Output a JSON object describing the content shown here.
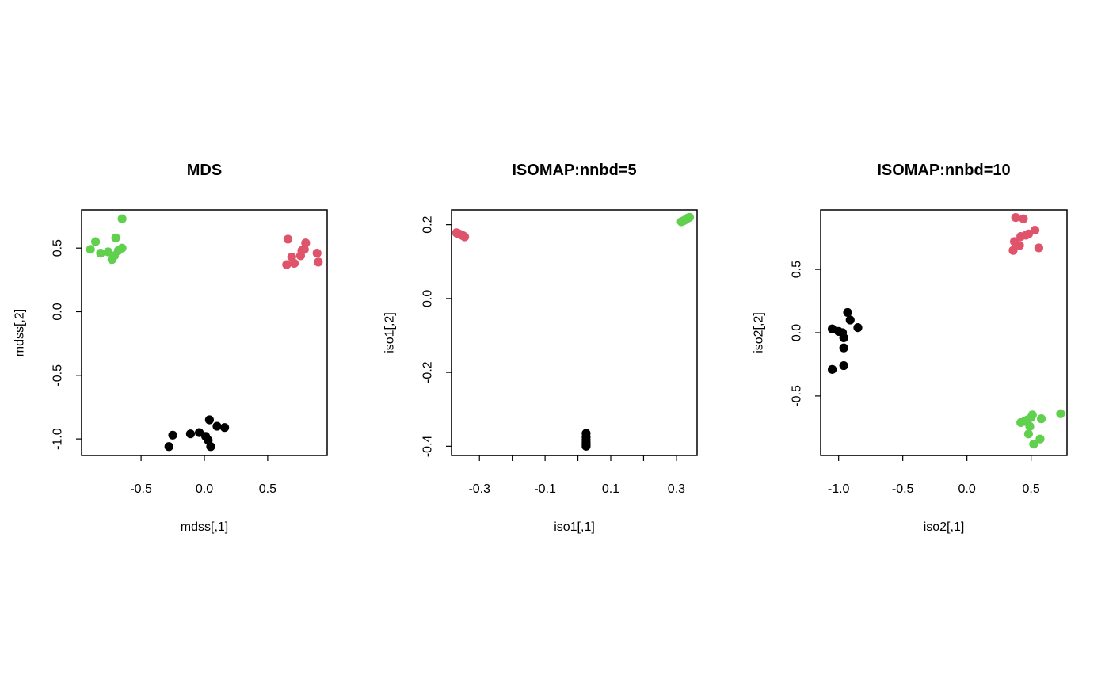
{
  "colors": {
    "group1": "#000000",
    "group2": "#df536b",
    "group3": "#61d04f"
  },
  "chart_data": [
    {
      "type": "scatter",
      "title": "MDS",
      "xlabel": "mdss[,1]",
      "ylabel": "mdss[,2]",
      "xlim": [
        -0.97,
        0.97
      ],
      "ylim": [
        -1.13,
        0.8
      ],
      "xticks": [
        -0.5,
        0.0,
        0.5
      ],
      "xtick_labels": [
        "-0.5",
        "0.0",
        "0.5"
      ],
      "yticks": [
        -1.0,
        -0.5,
        0.0,
        0.5
      ],
      "ytick_labels": [
        "-1.0",
        "-0.5",
        "0.0",
        "0.5"
      ],
      "series": [
        {
          "color": "#000000",
          "points": [
            [
              -0.28,
              -1.06
            ],
            [
              -0.25,
              -0.97
            ],
            [
              -0.11,
              -0.96
            ],
            [
              -0.04,
              -0.95
            ],
            [
              0.01,
              -0.98
            ],
            [
              0.03,
              -1.01
            ],
            [
              0.04,
              -0.85
            ],
            [
              0.05,
              -1.06
            ],
            [
              0.1,
              -0.9
            ],
            [
              0.16,
              -0.91
            ]
          ]
        },
        {
          "color": "#df536b",
          "points": [
            [
              0.65,
              0.37
            ],
            [
              0.66,
              0.57
            ],
            [
              0.69,
              0.43
            ],
            [
              0.71,
              0.38
            ],
            [
              0.76,
              0.44
            ],
            [
              0.77,
              0.48
            ],
            [
              0.79,
              0.49
            ],
            [
              0.8,
              0.54
            ],
            [
              0.89,
              0.46
            ],
            [
              0.9,
              0.39
            ]
          ]
        },
        {
          "color": "#61d04f",
          "points": [
            [
              -0.9,
              0.49
            ],
            [
              -0.86,
              0.55
            ],
            [
              -0.82,
              0.46
            ],
            [
              -0.76,
              0.47
            ],
            [
              -0.73,
              0.41
            ],
            [
              -0.71,
              0.44
            ],
            [
              -0.7,
              0.58
            ],
            [
              -0.68,
              0.48
            ],
            [
              -0.65,
              0.5
            ],
            [
              -0.65,
              0.73
            ]
          ]
        }
      ]
    },
    {
      "type": "scatter",
      "title": "ISOMAP:nnbd=5",
      "xlabel": "iso1[,1]",
      "ylabel": "iso1[,2]",
      "xlim": [
        -0.385,
        0.363
      ],
      "ylim": [
        -0.425,
        0.24
      ],
      "xticks": [
        -0.3,
        -0.2,
        -0.1,
        0.0,
        0.1,
        0.2,
        0.3
      ],
      "xtick_labels": [
        "-0.3",
        "",
        "-0.1",
        "",
        "0.1",
        "",
        "0.3"
      ],
      "yticks": [
        -0.4,
        -0.2,
        0.0,
        0.2
      ],
      "ytick_labels": [
        "-0.4",
        "-0.2",
        "0.0",
        "0.2"
      ],
      "series": [
        {
          "color": "#000000",
          "points": [
            [
              0.025,
              -0.365
            ],
            [
              0.025,
              -0.375
            ],
            [
              0.025,
              -0.383
            ],
            [
              0.025,
              -0.39
            ],
            [
              0.025,
              -0.396
            ],
            [
              0.025,
              -0.4
            ]
          ]
        },
        {
          "color": "#df536b",
          "points": [
            [
              -0.37,
              0.178
            ],
            [
              -0.365,
              0.176
            ],
            [
              -0.36,
              0.174
            ],
            [
              -0.355,
              0.172
            ],
            [
              -0.35,
              0.17
            ],
            [
              -0.345,
              0.167
            ]
          ]
        },
        {
          "color": "#61d04f",
          "points": [
            [
              0.315,
              0.208
            ],
            [
              0.32,
              0.21
            ],
            [
              0.325,
              0.212
            ],
            [
              0.33,
              0.215
            ],
            [
              0.335,
              0.218
            ],
            [
              0.34,
              0.22
            ]
          ]
        }
      ]
    },
    {
      "type": "scatter",
      "title": "ISOMAP:nnbd=10",
      "xlabel": "iso2[,1]",
      "ylabel": "iso2[,2]",
      "xlim": [
        -1.14,
        0.78
      ],
      "ylim": [
        -0.97,
        0.97
      ],
      "xticks": [
        -1.0,
        -0.5,
        0.0,
        0.5
      ],
      "xtick_labels": [
        "-1.0",
        "-0.5",
        "0.0",
        "0.5"
      ],
      "yticks": [
        -0.5,
        0.0,
        0.5
      ],
      "ytick_labels": [
        "-0.5",
        "0.0",
        "0.5"
      ],
      "series": [
        {
          "color": "#000000",
          "points": [
            [
              -1.05,
              0.03
            ],
            [
              -1.05,
              -0.29
            ],
            [
              -1.0,
              0.01
            ],
            [
              -0.97,
              0.0
            ],
            [
              -0.96,
              -0.04
            ],
            [
              -0.96,
              -0.12
            ],
            [
              -0.96,
              -0.26
            ],
            [
              -0.93,
              0.16
            ],
            [
              -0.91,
              0.1
            ],
            [
              -0.85,
              0.04
            ]
          ]
        },
        {
          "color": "#df536b",
          "points": [
            [
              0.36,
              0.65
            ],
            [
              0.37,
              0.72
            ],
            [
              0.38,
              0.91
            ],
            [
              0.41,
              0.69
            ],
            [
              0.42,
              0.76
            ],
            [
              0.44,
              0.9
            ],
            [
              0.46,
              0.77
            ],
            [
              0.48,
              0.78
            ],
            [
              0.53,
              0.81
            ],
            [
              0.56,
              0.67
            ]
          ]
        },
        {
          "color": "#61d04f",
          "points": [
            [
              0.42,
              -0.71
            ],
            [
              0.45,
              -0.7
            ],
            [
              0.47,
              -0.69
            ],
            [
              0.48,
              -0.8
            ],
            [
              0.49,
              -0.74
            ],
            [
              0.5,
              -0.67
            ],
            [
              0.52,
              -0.88
            ],
            [
              0.51,
              -0.65
            ],
            [
              0.57,
              -0.84
            ],
            [
              0.58,
              -0.68
            ],
            [
              0.73,
              -0.64
            ]
          ]
        }
      ]
    }
  ]
}
